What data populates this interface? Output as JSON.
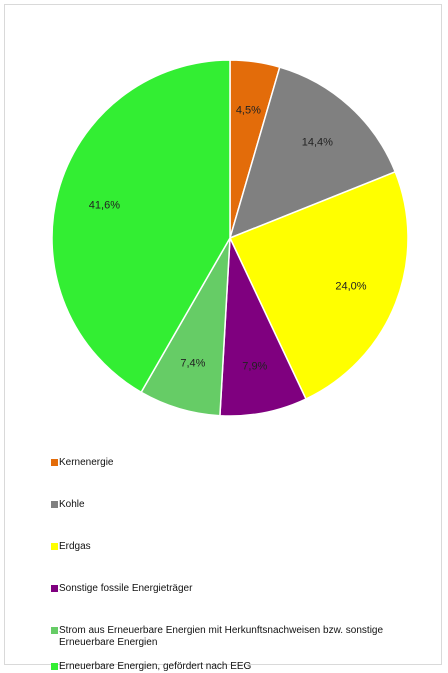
{
  "chart_data": {
    "type": "pie",
    "title": "",
    "slices": [
      {
        "label": "Kernenergie",
        "value": 4.5,
        "value_label": "4,5%",
        "color": "#e36c0a"
      },
      {
        "label": "Kohle",
        "value": 14.4,
        "value_label": "14,4%",
        "color": "#808080"
      },
      {
        "label": "Erdgas",
        "value": 24.0,
        "value_label": "24,0%",
        "color": "#ffff00"
      },
      {
        "label": "Sonstige fossile Energieträger",
        "value": 7.9,
        "value_label": "7,9%",
        "color": "#7f007f"
      },
      {
        "label": "Strom aus Erneuerbare Energien mit Herkunftsnachweisen bzw. sonstige Erneuerbare Energien",
        "value": 7.4,
        "value_label": "7,4%",
        "color": "#66cc66"
      },
      {
        "label": "Erneuerbare Energien, gefördert nach  EEG",
        "value": 41.6,
        "value_label": "41,6%",
        "color": "#33ee33"
      }
    ],
    "start_angle": "12 o'clock",
    "direction": "clockwise",
    "legend_placement": "bottom"
  }
}
